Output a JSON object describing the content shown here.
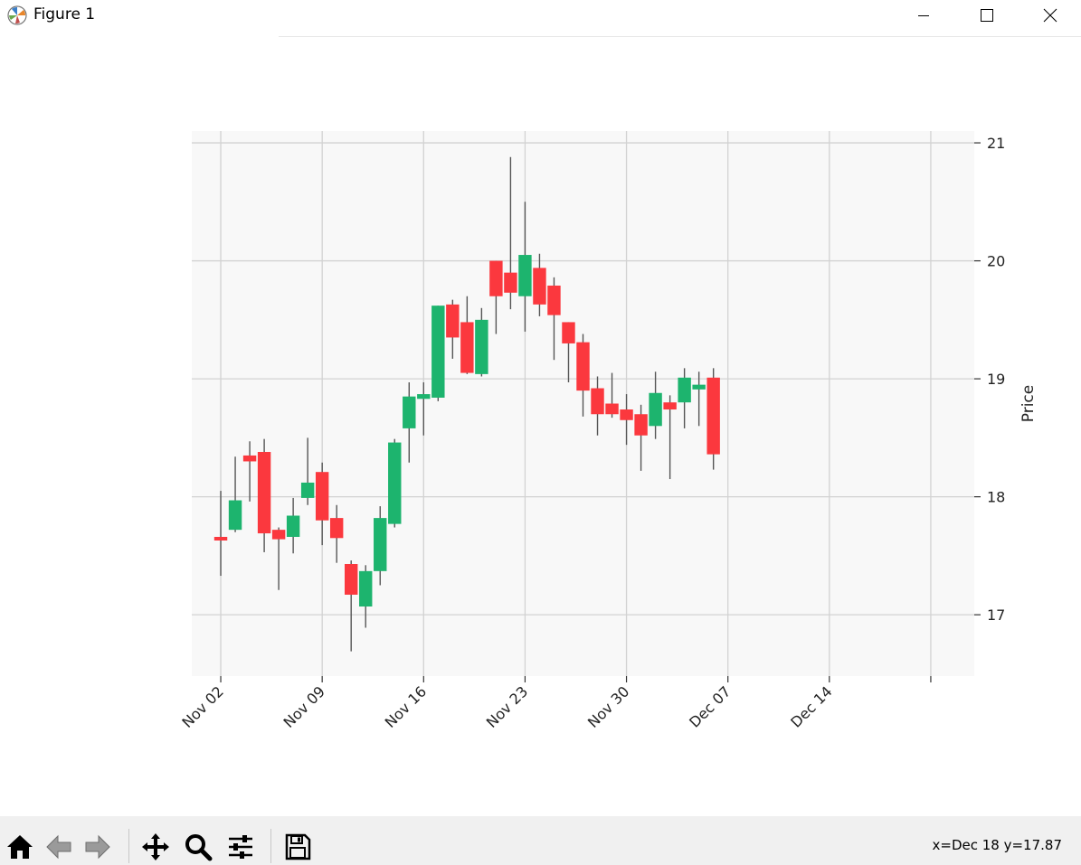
{
  "window": {
    "title": "Figure 1"
  },
  "toolbar": {
    "buttons": [
      "home-icon",
      "back-icon",
      "forward-icon",
      "pan-icon",
      "zoom-icon",
      "configure-subplots-icon",
      "save-icon"
    ],
    "coords": "x=Dec 18 y=17.87"
  },
  "colors": {
    "up": "#1db46e",
    "down": "#fb383e",
    "axes_bg": "#f8f8f8",
    "grid": "#d2d2d2",
    "wick": "#555555"
  },
  "chart_data": {
    "type": "candlestick",
    "ylabel": "Price",
    "ylim": [
      16.48,
      21.1
    ],
    "xlim": [
      "2020-10-31",
      "2020-12-24"
    ],
    "y_ticks": [
      17,
      18,
      19,
      20,
      21
    ],
    "y_tick_labels": [
      "17",
      "18",
      "19",
      "20",
      "21"
    ],
    "x_ticks": [
      "2020-11-02",
      "2020-11-09",
      "2020-11-16",
      "2020-11-23",
      "2020-11-30",
      "2020-12-07",
      "2020-12-14",
      "2020-12-21"
    ],
    "x_tick_labels": [
      "Nov 02",
      "Nov 09",
      "Nov 16",
      "Nov 23",
      "Nov 30",
      "Dec 07",
      "Dec 14",
      ""
    ],
    "grid": true,
    "y_axis_side": "right",
    "candles": [
      {
        "date": "2020-11-02",
        "open": 17.66,
        "high": 18.05,
        "low": 17.33,
        "close": 17.63
      },
      {
        "date": "2020-11-03",
        "open": 17.72,
        "high": 18.34,
        "low": 17.7,
        "close": 17.97
      },
      {
        "date": "2020-11-04",
        "open": 18.35,
        "high": 18.47,
        "low": 17.96,
        "close": 18.3
      },
      {
        "date": "2020-11-05",
        "open": 18.38,
        "high": 18.49,
        "low": 17.53,
        "close": 17.69
      },
      {
        "date": "2020-11-06",
        "open": 17.72,
        "high": 17.74,
        "low": 17.21,
        "close": 17.64
      },
      {
        "date": "2020-11-07",
        "open": 17.66,
        "high": 17.99,
        "low": 17.52,
        "close": 17.84
      },
      {
        "date": "2020-11-08",
        "open": 17.99,
        "high": 18.5,
        "low": 17.93,
        "close": 18.12
      },
      {
        "date": "2020-11-09",
        "open": 18.21,
        "high": 18.29,
        "low": 17.59,
        "close": 17.8
      },
      {
        "date": "2020-11-10",
        "open": 17.82,
        "high": 17.93,
        "low": 17.44,
        "close": 17.65
      },
      {
        "date": "2020-11-11",
        "open": 17.43,
        "high": 17.46,
        "low": 16.69,
        "close": 17.17
      },
      {
        "date": "2020-11-12",
        "open": 17.07,
        "high": 17.42,
        "low": 16.89,
        "close": 17.37
      },
      {
        "date": "2020-11-13",
        "open": 17.37,
        "high": 17.92,
        "low": 17.25,
        "close": 17.82
      },
      {
        "date": "2020-11-14",
        "open": 17.77,
        "high": 18.49,
        "low": 17.74,
        "close": 18.46
      },
      {
        "date": "2020-11-15",
        "open": 18.58,
        "high": 18.97,
        "low": 18.29,
        "close": 18.85
      },
      {
        "date": "2020-11-16",
        "open": 18.83,
        "high": 18.97,
        "low": 18.52,
        "close": 18.87
      },
      {
        "date": "2020-11-17",
        "open": 18.84,
        "high": 19.62,
        "low": 18.81,
        "close": 19.62
      },
      {
        "date": "2020-11-18",
        "open": 19.63,
        "high": 19.67,
        "low": 19.17,
        "close": 19.35
      },
      {
        "date": "2020-11-19",
        "open": 19.48,
        "high": 19.7,
        "low": 19.04,
        "close": 19.05
      },
      {
        "date": "2020-11-20",
        "open": 19.04,
        "high": 19.6,
        "low": 19.02,
        "close": 19.5
      },
      {
        "date": "2020-11-21",
        "open": 20.0,
        "high": 20.0,
        "low": 19.38,
        "close": 19.7
      },
      {
        "date": "2020-11-22",
        "open": 19.9,
        "high": 20.88,
        "low": 19.59,
        "close": 19.73
      },
      {
        "date": "2020-11-23",
        "open": 19.7,
        "high": 20.5,
        "low": 19.4,
        "close": 20.05
      },
      {
        "date": "2020-11-24",
        "open": 19.94,
        "high": 20.06,
        "low": 19.53,
        "close": 19.63
      },
      {
        "date": "2020-11-25",
        "open": 19.79,
        "high": 19.86,
        "low": 19.16,
        "close": 19.54
      },
      {
        "date": "2020-11-26",
        "open": 19.48,
        "high": 19.48,
        "low": 18.97,
        "close": 19.3
      },
      {
        "date": "2020-11-27",
        "open": 19.31,
        "high": 19.38,
        "low": 18.68,
        "close": 18.9
      },
      {
        "date": "2020-11-28",
        "open": 18.92,
        "high": 19.02,
        "low": 18.52,
        "close": 18.7
      },
      {
        "date": "2020-11-29",
        "open": 18.79,
        "high": 19.05,
        "low": 18.67,
        "close": 18.7
      },
      {
        "date": "2020-11-30",
        "open": 18.74,
        "high": 18.87,
        "low": 18.44,
        "close": 18.65
      },
      {
        "date": "2020-12-01",
        "open": 18.7,
        "high": 18.78,
        "low": 18.22,
        "close": 18.52
      },
      {
        "date": "2020-12-02",
        "open": 18.6,
        "high": 19.06,
        "low": 18.49,
        "close": 18.88
      },
      {
        "date": "2020-12-03",
        "open": 18.8,
        "high": 18.86,
        "low": 18.15,
        "close": 18.74
      },
      {
        "date": "2020-12-04",
        "open": 18.8,
        "high": 19.09,
        "low": 18.58,
        "close": 19.01
      },
      {
        "date": "2020-12-05",
        "open": 18.91,
        "high": 19.06,
        "low": 18.6,
        "close": 18.95
      },
      {
        "date": "2020-12-06",
        "open": 19.01,
        "high": 19.09,
        "low": 18.23,
        "close": 18.36
      }
    ]
  }
}
